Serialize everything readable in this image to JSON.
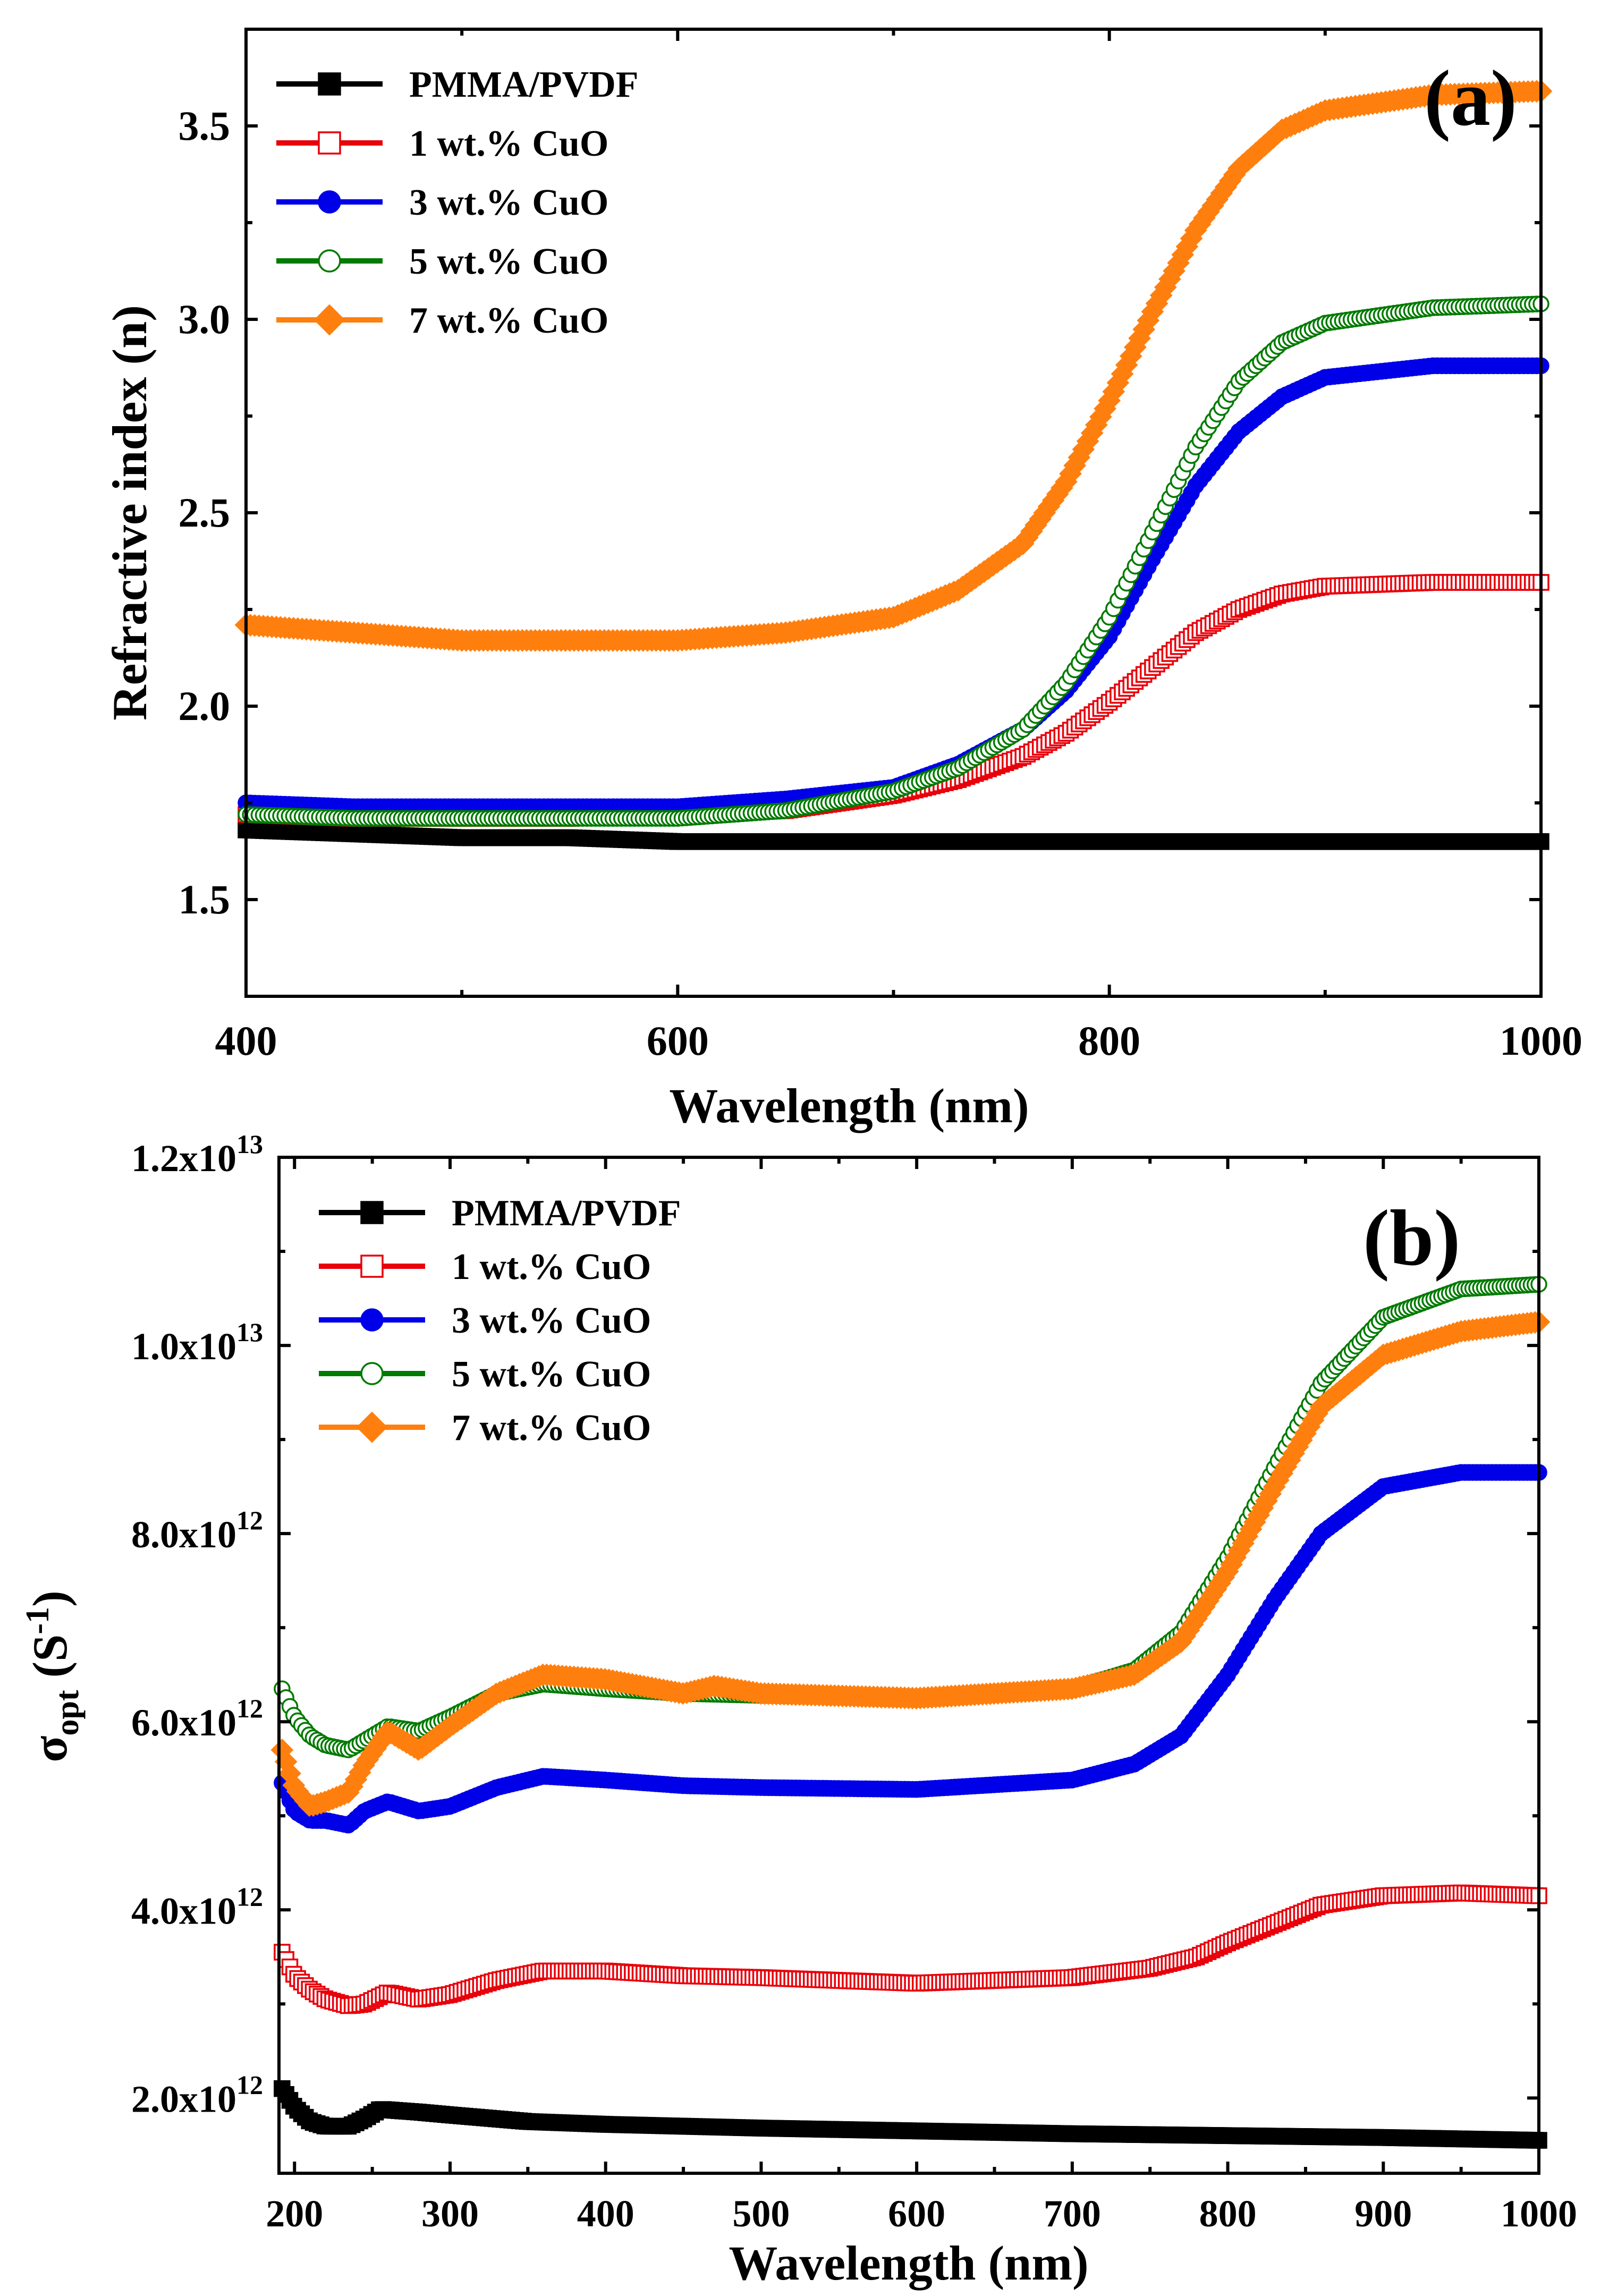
{
  "chart_data": [
    {
      "type": "scatter",
      "panel_label": "(a)",
      "xlabel": "Wavelength (nm)",
      "ylabel": "Refractive index (n)",
      "xlim": [
        400,
        1000
      ],
      "ylim": [
        1.25,
        3.75
      ],
      "xticks": [
        400,
        600,
        800,
        1000
      ],
      "xtick_labels": [
        "400",
        "600",
        "800",
        "1000"
      ],
      "yticks": [
        1.5,
        2.0,
        2.5,
        3.0,
        3.5
      ],
      "ytick_labels": [
        "1.5",
        "2.0",
        "2.5",
        "3.0",
        "3.5"
      ],
      "legend_position": "top-left",
      "series": [
        {
          "name": "PMMA/PVDF",
          "color": "#000000",
          "marker": "filled-square",
          "x": [
            400,
            450,
            500,
            550,
            600,
            650,
            700,
            750,
            800,
            850,
            900,
            950,
            1000
          ],
          "y": [
            1.68,
            1.67,
            1.66,
            1.66,
            1.65,
            1.65,
            1.65,
            1.65,
            1.65,
            1.65,
            1.65,
            1.65,
            1.65
          ]
        },
        {
          "name": "1 wt.% CuO",
          "color": "#e8000b",
          "marker": "open-square",
          "x": [
            400,
            450,
            500,
            550,
            600,
            650,
            700,
            730,
            760,
            780,
            800,
            820,
            840,
            860,
            880,
            900,
            950,
            1000
          ],
          "y": [
            1.72,
            1.71,
            1.71,
            1.71,
            1.72,
            1.73,
            1.77,
            1.81,
            1.87,
            1.93,
            2.01,
            2.1,
            2.19,
            2.25,
            2.29,
            2.31,
            2.32,
            2.32
          ]
        },
        {
          "name": "3 wt.% CuO",
          "color": "#0000e8",
          "marker": "filled-circle",
          "x": [
            400,
            450,
            500,
            550,
            600,
            650,
            700,
            730,
            760,
            780,
            800,
            820,
            840,
            860,
            880,
            900,
            950,
            1000
          ],
          "y": [
            1.75,
            1.74,
            1.74,
            1.74,
            1.74,
            1.76,
            1.79,
            1.85,
            1.94,
            2.04,
            2.18,
            2.38,
            2.57,
            2.71,
            2.8,
            2.85,
            2.88,
            2.88
          ]
        },
        {
          "name": "5 wt.% CuO",
          "color": "#007a00",
          "marker": "open-circle",
          "x": [
            400,
            450,
            500,
            550,
            600,
            650,
            700,
            730,
            760,
            780,
            800,
            820,
            840,
            860,
            880,
            900,
            950,
            1000
          ],
          "y": [
            1.72,
            1.71,
            1.71,
            1.71,
            1.71,
            1.73,
            1.78,
            1.84,
            1.94,
            2.06,
            2.23,
            2.45,
            2.67,
            2.84,
            2.94,
            2.99,
            3.03,
            3.04
          ]
        },
        {
          "name": "7 wt.% CuO",
          "color": "#ff7f0e",
          "marker": "filled-diamond",
          "x": [
            400,
            450,
            500,
            550,
            600,
            650,
            700,
            730,
            760,
            780,
            800,
            820,
            840,
            860,
            880,
            900,
            950,
            1000
          ],
          "y": [
            2.21,
            2.19,
            2.17,
            2.17,
            2.17,
            2.19,
            2.23,
            2.3,
            2.42,
            2.58,
            2.79,
            3.02,
            3.23,
            3.39,
            3.49,
            3.54,
            3.58,
            3.59
          ]
        }
      ]
    },
    {
      "type": "scatter",
      "panel_label": "(b)",
      "xlabel": "Wavelength (nm)",
      "ylabel_main": "σ",
      "ylabel_sub": "opt",
      "ylabel_unit": " (S",
      "ylabel_sup": "-1",
      "ylabel_close": ")",
      "xlim": [
        190,
        1000
      ],
      "ylim": [
        1200000000000.0,
        12000000000000.0
      ],
      "xticks": [
        200,
        300,
        400,
        500,
        600,
        700,
        800,
        900,
        1000
      ],
      "xtick_labels": [
        "200",
        "300",
        "400",
        "500",
        "600",
        "700",
        "800",
        "900",
        "1000"
      ],
      "yticks": [
        2000000000000.0,
        4000000000000.0,
        6000000000000.0,
        8000000000000.0,
        10000000000000.0,
        12000000000000.0
      ],
      "ytick_mantissas": [
        "2.0x10",
        "4.0x10",
        "6.0x10",
        "8.0x10",
        "1.0x10",
        "1.2x10"
      ],
      "ytick_exponents": [
        "12",
        "12",
        "12",
        "12",
        "13",
        "13"
      ],
      "legend_position": "top-left",
      "series": [
        {
          "name": "PMMA/PVDF",
          "color": "#000000",
          "marker": "filled-square",
          "x": [
            192,
            200,
            210,
            220,
            235,
            245,
            255,
            280,
            300,
            350,
            400,
            450,
            500,
            600,
            700,
            800,
            900,
            1000
          ],
          "y": [
            2100000000000.0,
            1900000000000.0,
            1750000000000.0,
            1700000000000.0,
            1700000000000.0,
            1780000000000.0,
            1880000000000.0,
            1850000000000.0,
            1820000000000.0,
            1750000000000.0,
            1720000000000.0,
            1700000000000.0,
            1680000000000.0,
            1650000000000.0,
            1620000000000.0,
            1600000000000.0,
            1580000000000.0,
            1550000000000.0
          ]
        },
        {
          "name": "1 wt.% CuO",
          "color": "#e8000b",
          "marker": "open-square",
          "x": [
            192,
            200,
            210,
            220,
            235,
            245,
            260,
            280,
            300,
            330,
            360,
            400,
            450,
            500,
            600,
            700,
            750,
            780,
            800,
            830,
            860,
            900,
            950,
            1000
          ],
          "y": [
            3550000000000.0,
            3300000000000.0,
            3150000000000.0,
            3050000000000.0,
            2980000000000.0,
            3000000000000.0,
            3120000000000.0,
            3050000000000.0,
            3100000000000.0,
            3250000000000.0,
            3350000000000.0,
            3350000000000.0,
            3300000000000.0,
            3280000000000.0,
            3220000000000.0,
            3280000000000.0,
            3380000000000.0,
            3500000000000.0,
            3650000000000.0,
            3850000000000.0,
            4050000000000.0,
            4150000000000.0,
            4180000000000.0,
            4150000000000.0
          ]
        },
        {
          "name": "3 wt.% CuO",
          "color": "#0000e8",
          "marker": "filled-circle",
          "x": [
            192,
            200,
            210,
            220,
            235,
            245,
            260,
            280,
            300,
            330,
            360,
            400,
            450,
            500,
            600,
            700,
            740,
            770,
            800,
            830,
            860,
            900,
            950,
            1000
          ],
          "y": [
            5350000000000.0,
            5050000000000.0,
            4950000000000.0,
            4950000000000.0,
            4900000000000.0,
            5050000000000.0,
            5150000000000.0,
            5050000000000.0,
            5100000000000.0,
            5300000000000.0,
            5420000000000.0,
            5380000000000.0,
            5320000000000.0,
            5300000000000.0,
            5280000000000.0,
            5380000000000.0,
            5550000000000.0,
            5850000000000.0,
            6500000000000.0,
            7300000000000.0,
            8000000000000.0,
            8500000000000.0,
            8650000000000.0,
            8650000000000.0
          ]
        },
        {
          "name": "5 wt.% CuO",
          "color": "#007a00",
          "marker": "open-circle",
          "x": [
            192,
            200,
            210,
            220,
            235,
            245,
            260,
            280,
            300,
            330,
            360,
            400,
            450,
            500,
            600,
            700,
            740,
            770,
            800,
            830,
            860,
            900,
            950,
            1000
          ],
          "y": [
            6350000000000.0,
            6050000000000.0,
            5850000000000.0,
            5750000000000.0,
            5700000000000.0,
            5800000000000.0,
            5950000000000.0,
            5900000000000.0,
            6050000000000.0,
            6300000000000.0,
            6400000000000.0,
            6350000000000.0,
            6300000000000.0,
            6280000000000.0,
            6250000000000.0,
            6350000000000.0,
            6550000000000.0,
            6950000000000.0,
            7750000000000.0,
            8700000000000.0,
            9600000000000.0,
            10300000000000.0,
            10600000000000.0,
            10650000000000.0
          ]
        },
        {
          "name": "7 wt.% CuO",
          "color": "#ff7f0e",
          "marker": "filled-diamond",
          "x": [
            192,
            200,
            210,
            220,
            235,
            245,
            260,
            280,
            300,
            330,
            360,
            400,
            450,
            470,
            500,
            600,
            700,
            740,
            770,
            800,
            830,
            860,
            900,
            950,
            1000
          ],
          "y": [
            5700000000000.0,
            5300000000000.0,
            5100000000000.0,
            5150000000000.0,
            5250000000000.0,
            5550000000000.0,
            5900000000000.0,
            5700000000000.0,
            5950000000000.0,
            6300000000000.0,
            6500000000000.0,
            6450000000000.0,
            6300000000000.0,
            6380000000000.0,
            6300000000000.0,
            6250000000000.0,
            6350000000000.0,
            6500000000000.0,
            6850000000000.0,
            7600000000000.0,
            8500000000000.0,
            9350000000000.0,
            9900000000000.0,
            10150000000000.0,
            10250000000000.0
          ]
        }
      ]
    }
  ]
}
